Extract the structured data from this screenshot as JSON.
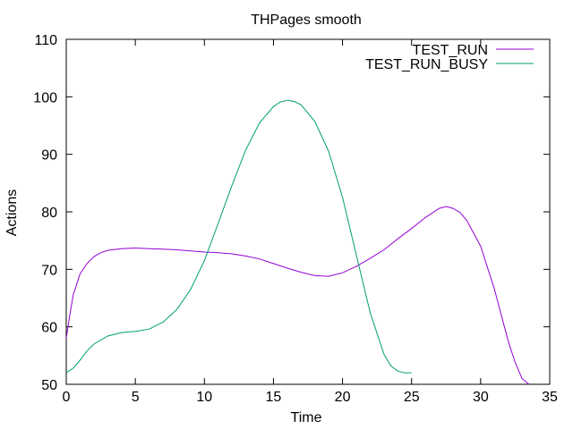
{
  "chart_data": {
    "type": "line",
    "title": "THPages smooth",
    "xlabel": "Time",
    "ylabel": "Actions",
    "xlim": [
      0,
      35
    ],
    "ylim": [
      50,
      110
    ],
    "xticks": [
      0,
      5,
      10,
      15,
      20,
      25,
      30,
      35
    ],
    "yticks": [
      50,
      60,
      70,
      80,
      90,
      100,
      110
    ],
    "legend_position": "top-right",
    "grid": false,
    "series": [
      {
        "name": "TEST_RUN",
        "color": "#9400d3",
        "x": [
          0,
          0.25,
          0.5,
          1,
          1.5,
          2,
          2.5,
          3,
          4,
          5,
          6,
          7,
          8,
          9,
          10,
          11,
          12,
          13,
          14,
          15,
          16,
          17,
          18,
          19,
          20,
          21,
          22,
          23,
          24,
          25,
          26,
          27,
          27.5,
          28,
          28.5,
          29,
          30,
          31,
          32,
          32.5,
          33,
          33.5
        ],
        "y": [
          58,
          62,
          65.5,
          69.2,
          71,
          72.2,
          72.9,
          73.3,
          73.6,
          73.7,
          73.6,
          73.5,
          73.4,
          73.2,
          73.0,
          72.9,
          72.7,
          72.3,
          71.8,
          71.0,
          70.2,
          69.5,
          68.9,
          68.8,
          69.4,
          70.5,
          71.9,
          73.4,
          75.3,
          77.1,
          79.0,
          80.6,
          80.9,
          80.6,
          79.9,
          78.5,
          74.0,
          66.5,
          57.5,
          53.8,
          51.0,
          50.0
        ]
      },
      {
        "name": "TEST_RUN_BUSY",
        "color": "#009e73",
        "x": [
          0,
          0.5,
          1,
          1.5,
          2,
          3,
          4,
          5,
          6,
          7,
          8,
          9,
          10,
          11,
          12,
          13,
          14,
          15,
          15.5,
          16,
          16.5,
          17,
          18,
          19,
          20,
          21,
          22,
          23,
          23.5,
          24,
          24.5,
          25
        ],
        "y": [
          52,
          52.8,
          54.2,
          55.8,
          57.0,
          58.4,
          59.0,
          59.2,
          59.6,
          60.8,
          63.0,
          66.5,
          71.5,
          78.0,
          84.6,
          90.8,
          95.5,
          98.3,
          99.1,
          99.4,
          99.2,
          98.6,
          95.7,
          90.5,
          82.5,
          72.5,
          62.5,
          55.2,
          53.2,
          52.3,
          52.0,
          52.0
        ]
      }
    ]
  }
}
